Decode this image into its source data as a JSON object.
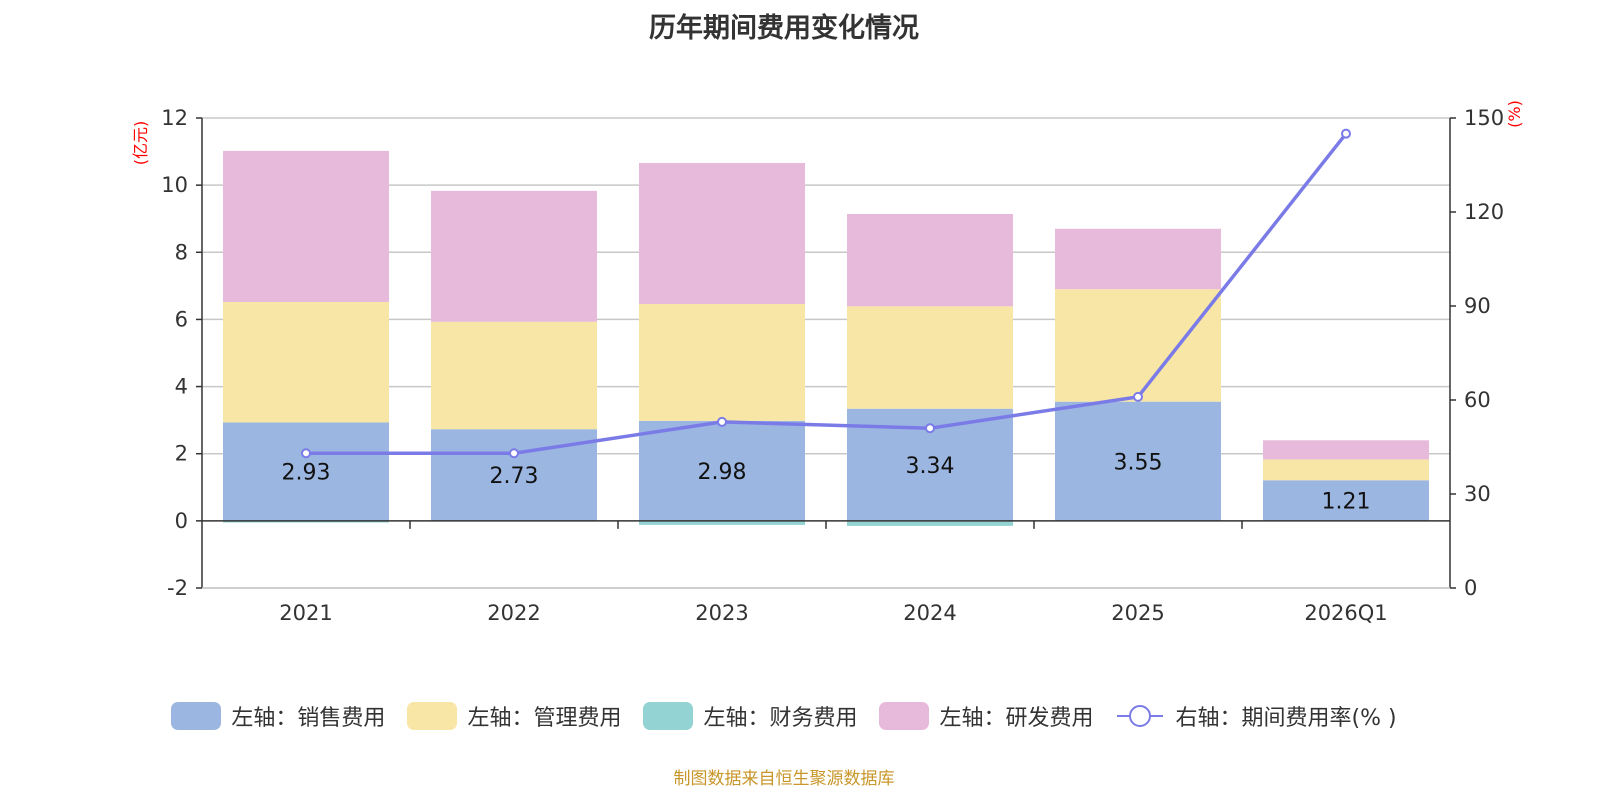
{
  "chart_data": {
    "type": "bar",
    "stacked": true,
    "title": "历年期间费用变化情况",
    "categories": [
      "2021",
      "2022",
      "2023",
      "2024",
      "2025",
      "2026Q1"
    ],
    "left_axis": {
      "unit": "(亿元)",
      "ylim": [
        -2,
        12
      ],
      "ticks": [
        -2,
        0,
        2,
        4,
        6,
        8,
        10,
        12
      ]
    },
    "right_axis": {
      "unit": "(%)",
      "ylim": [
        0,
        150
      ],
      "ticks": [
        0,
        30,
        60,
        90,
        120,
        150
      ]
    },
    "series": [
      {
        "name": "左轴：销售费用",
        "axis": "left",
        "type": "bar",
        "color": "#9bb6e0",
        "values": [
          2.93,
          2.73,
          2.98,
          3.34,
          3.55,
          1.21
        ],
        "show_labels": true
      },
      {
        "name": "左轴：管理费用",
        "axis": "left",
        "type": "bar",
        "color": "#f8e6a6",
        "values": [
          3.59,
          3.2,
          3.48,
          3.05,
          3.35,
          0.62
        ]
      },
      {
        "name": "左轴：财务费用",
        "axis": "left",
        "type": "bar",
        "color": "#93d3d3",
        "values": [
          -0.05,
          -0.02,
          -0.12,
          -0.15,
          -0.02,
          -0.01
        ]
      },
      {
        "name": "左轴：研发费用",
        "axis": "left",
        "type": "bar",
        "color": "#e7b9db",
        "values": [
          4.5,
          3.9,
          4.2,
          2.75,
          1.8,
          0.57
        ]
      },
      {
        "name": "右轴：期间费用率(% )",
        "axis": "right",
        "type": "line",
        "color": "#7b7be8",
        "values": [
          43,
          43,
          53,
          51,
          61,
          145
        ]
      }
    ],
    "data_labels": [
      "2.93",
      "2.73",
      "2.98",
      "3.34",
      "3.55",
      "1.21"
    ],
    "legend_position": "bottom",
    "grid": true
  },
  "source_text": "制图数据来自恒生聚源数据库"
}
